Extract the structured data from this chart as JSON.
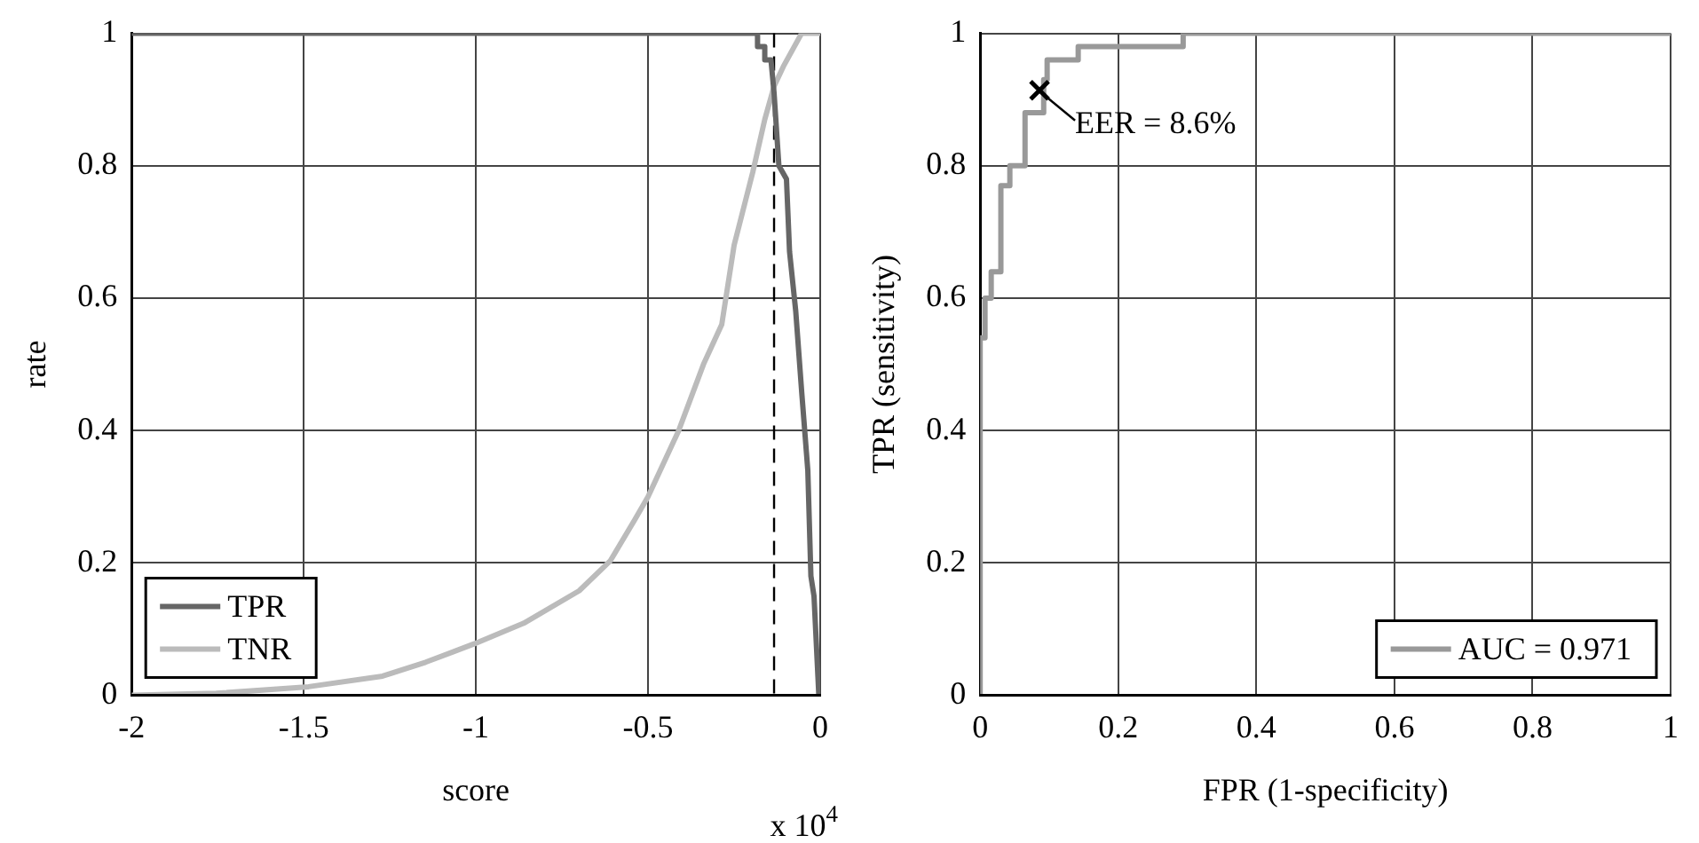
{
  "chart_data": [
    {
      "type": "line",
      "xlabel": "score",
      "ylabel": "rate",
      "annotations": [
        "x 10$^{4}$"
      ],
      "xlim": [
        -2,
        0
      ],
      "xticks": [
        -2,
        -1.5,
        -1,
        -0.5,
        0
      ],
      "ylim": [
        0,
        1
      ],
      "yticks": [
        0,
        0.2,
        0.4,
        0.6,
        0.8,
        1
      ],
      "grid": true,
      "legend": "bottom left",
      "marker": "none",
      "line_style": "solid",
      "ref_lines": [
        {
          "axis": "x",
          "value": -0.134,
          "line_style": "dashed",
          "color": "#000000"
        }
      ],
      "series": [
        {
          "name": "TPR",
          "color": "#666666",
          "x": [
            -2,
            -0.232,
            -0.182,
            -0.182,
            -0.161,
            -0.161,
            -0.143,
            -0.134,
            -0.12,
            -0.098,
            -0.089,
            -0.071,
            -0.054,
            -0.036,
            -0.027,
            -0.018,
            -0.004
          ],
          "values": [
            1,
            1,
            1,
            0.98,
            0.98,
            0.96,
            0.96,
            0.91,
            0.8,
            0.78,
            0.67,
            0.58,
            0.46,
            0.34,
            0.18,
            0.15,
            0
          ]
        },
        {
          "name": "TNR",
          "color": "#bbbbbb",
          "x": [
            -2,
            -1.754,
            -1.486,
            -1.271,
            -1.146,
            -1.004,
            -0.861,
            -0.7,
            -0.61,
            -0.539,
            -0.5,
            -0.411,
            -0.339,
            -0.286,
            -0.25,
            -0.196,
            -0.161,
            -0.134,
            -0.107,
            -0.054,
            0
          ],
          "values": [
            0,
            0.003,
            0.013,
            0.029,
            0.05,
            0.078,
            0.109,
            0.158,
            0.203,
            0.265,
            0.3,
            0.4,
            0.5,
            0.56,
            0.68,
            0.79,
            0.87,
            0.92,
            0.95,
            1,
            1
          ]
        }
      ]
    },
    {
      "type": "line",
      "xlabel": "FPR (1-specificity)",
      "ylabel": "TPR (sensitivity)",
      "annotations": [
        {
          "text": "EER = 8.6%",
          "x": 0.086,
          "y": 0.914
        }
      ],
      "xlim": [
        0,
        1
      ],
      "xticks": [
        0,
        0.2,
        0.4,
        0.6,
        0.8,
        1
      ],
      "ylim": [
        0,
        1
      ],
      "yticks": [
        0,
        0.2,
        0.4,
        0.6,
        0.8,
        1
      ],
      "grid": true,
      "legend": "bottom right",
      "marker": "none",
      "line_style": "solid",
      "series": [
        {
          "name": "AUC = 0.971",
          "color": "#999999",
          "x": [
            0,
            0,
            0.007,
            0.007,
            0.016,
            0.016,
            0.03,
            0.03,
            0.043,
            0.043,
            0.061,
            0.061,
            0.065,
            0.065,
            0.083,
            0.083,
            0.092,
            0.092,
            0.097,
            0.097,
            0.142,
            0.142,
            0.294,
            0.294,
            1
          ],
          "values": [
            0,
            0.54,
            0.54,
            0.6,
            0.6,
            0.64,
            0.64,
            0.77,
            0.77,
            0.8,
            0.8,
            0.8,
            0.8,
            0.88,
            0.88,
            0.88,
            0.88,
            0.93,
            0.93,
            0.96,
            0.96,
            0.98,
            0.98,
            1,
            1
          ]
        }
      ]
    }
  ]
}
